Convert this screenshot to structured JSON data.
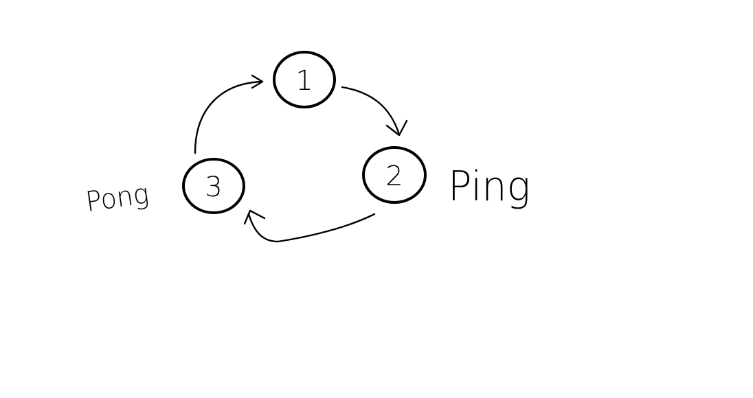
{
  "diagram": {
    "nodes": [
      {
        "id": "1",
        "label": "1"
      },
      {
        "id": "2",
        "label": "2"
      },
      {
        "id": "3",
        "label": "3"
      }
    ],
    "edges": [
      {
        "from": "1",
        "to": "2"
      },
      {
        "from": "2",
        "to": "3"
      },
      {
        "from": "3",
        "to": "1"
      }
    ],
    "annotations": {
      "ping": "Ping",
      "pong": "Pong"
    },
    "stroke_color": "#000000",
    "background_color": "#ffffff"
  }
}
